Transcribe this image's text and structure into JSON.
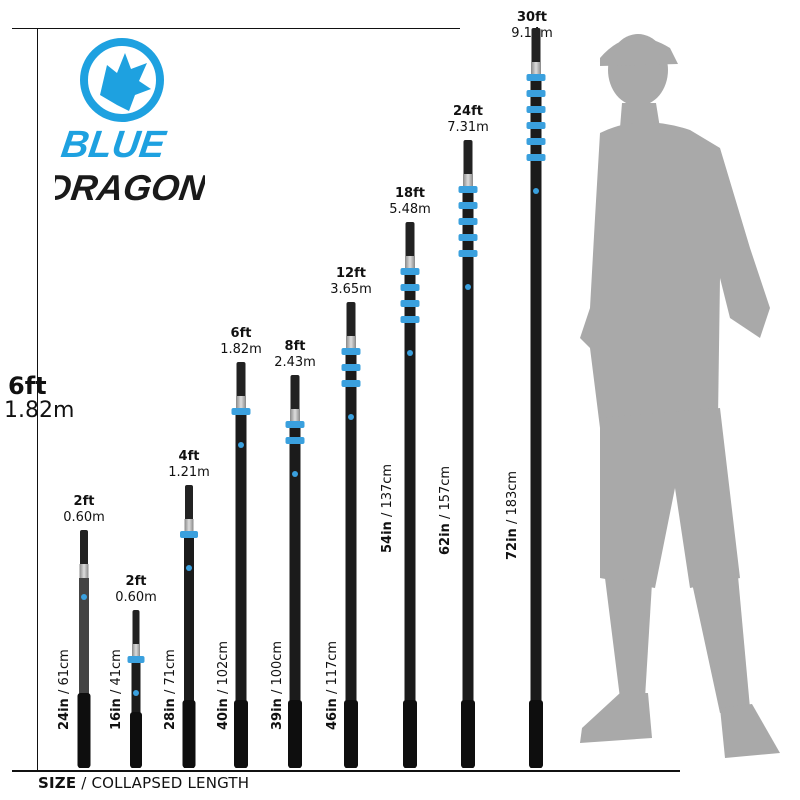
{
  "brand": {
    "line1": "BLUE",
    "line2": "DRAGON",
    "primary_color": "#1ea1e0",
    "secondary_color": "#1a1a1a"
  },
  "reference_height": {
    "ft": "6ft",
    "m": "1.82m"
  },
  "footer": {
    "bold": "SIZE",
    "rest": " / COLLAPSED LENGTH"
  },
  "poles": [
    {
      "extended_ft": "2ft",
      "extended_m": "0.60m",
      "collapsed_in": "24in",
      "collapsed_cm": " / 61cm",
      "clamps": 0
    },
    {
      "extended_ft": "2ft",
      "extended_m": "0.60m",
      "collapsed_in": "16in",
      "collapsed_cm": " / 41cm",
      "clamps": 1
    },
    {
      "extended_ft": "4ft",
      "extended_m": "1.21m",
      "collapsed_in": "28in",
      "collapsed_cm": " / 71cm",
      "clamps": 1
    },
    {
      "extended_ft": "6ft",
      "extended_m": "1.82m",
      "collapsed_in": "40in",
      "collapsed_cm": " / 102cm",
      "clamps": 1
    },
    {
      "extended_ft": "8ft",
      "extended_m": "2.43m",
      "collapsed_in": "39in",
      "collapsed_cm": " / 100cm",
      "clamps": 2
    },
    {
      "extended_ft": "12ft",
      "extended_m": "3.65m",
      "collapsed_in": "46in",
      "collapsed_cm": " / 117cm",
      "clamps": 3
    },
    {
      "extended_ft": "18ft",
      "extended_m": "5.48m",
      "collapsed_in": "54in",
      "collapsed_cm": " / 137cm",
      "clamps": 4
    },
    {
      "extended_ft": "24ft",
      "extended_m": "7.31m",
      "collapsed_in": "62in",
      "collapsed_cm": " / 157cm",
      "clamps": 5
    },
    {
      "extended_ft": "30ft",
      "extended_m": "9.14m",
      "collapsed_in": "72in",
      "collapsed_cm": " / 183cm",
      "clamps": 6
    }
  ]
}
